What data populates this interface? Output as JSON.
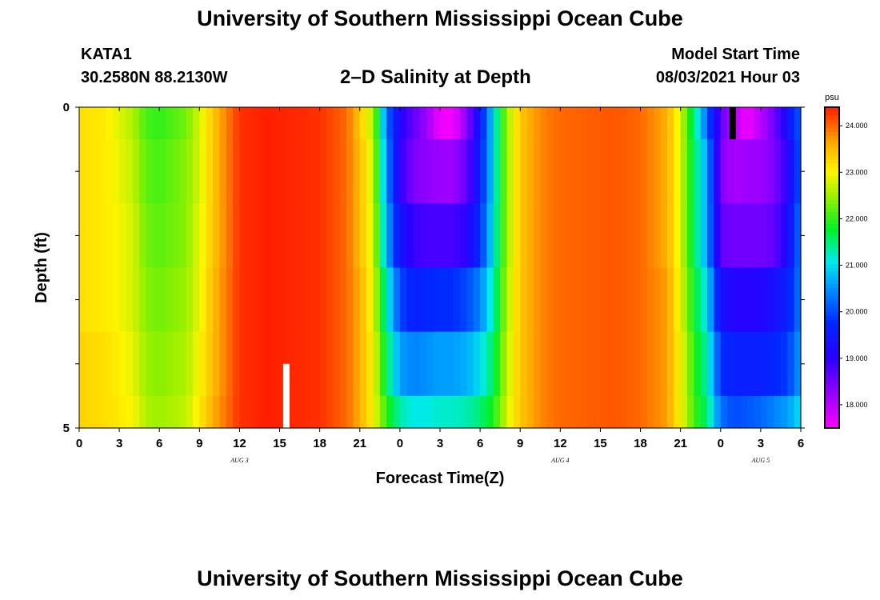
{
  "header": {
    "title": "University of Southern Mississippi Ocean Cube",
    "station": "KATA1",
    "coordinates": "30.2580N  88.2130W",
    "subtitle": "2–D Salinity at Depth",
    "model_start_label": "Model Start Time",
    "model_start_value": "08/03/2021 Hour 03"
  },
  "footer": {
    "title": "University of Southern Mississippi Ocean Cube"
  },
  "chart_data": {
    "type": "heatmap",
    "title": "2–D Salinity at Depth",
    "xlabel": "Forecast Time(Z)",
    "ylabel": "Depth (ft)",
    "xlim": [
      0,
      54
    ],
    "ylim": [
      0,
      5
    ],
    "x_ticks": [
      0,
      3,
      6,
      9,
      12,
      15,
      18,
      21,
      24,
      27,
      30,
      33,
      36,
      39,
      42,
      45,
      48,
      51,
      54
    ],
    "x_tick_labels": [
      "0",
      "3",
      "6",
      "9",
      "12",
      "15",
      "18",
      "21",
      "0",
      "3",
      "6",
      "9",
      "12",
      "15",
      "18",
      "21",
      "0",
      "3",
      "6"
    ],
    "y_ticks": [
      0,
      1,
      2,
      3,
      4,
      5
    ],
    "y_tick_labels": [
      "0",
      "",
      "",
      "",
      "",
      "5"
    ],
    "date_labels": [
      {
        "x": 12,
        "label": "AUG 3"
      },
      {
        "x": 36,
        "label": "AUG 4"
      },
      {
        "x": 51,
        "label": "AUG 5"
      }
    ],
    "colorbar": {
      "unit": "psu",
      "min": 17.5,
      "max": 24.4,
      "ticks": [
        18.0,
        19.0,
        20.0,
        21.0,
        22.0,
        23.0,
        24.0
      ],
      "tick_labels": [
        "18.000",
        "19.000",
        "20.000",
        "21.000",
        "22.000",
        "23.000",
        "24.000"
      ]
    },
    "depth_layers": [
      {
        "depth_range": [
          0,
          0.5
        ],
        "x": [
          0,
          2,
          4,
          5,
          6,
          8,
          9,
          10,
          12,
          14,
          18,
          20,
          21,
          22,
          23,
          24,
          25,
          26,
          27,
          28,
          29,
          30,
          31,
          32,
          33,
          34,
          35,
          36,
          40,
          42,
          44,
          45,
          46,
          47,
          48,
          49,
          50,
          51,
          52,
          53,
          54
        ],
        "values": [
          23.2,
          23.1,
          22.6,
          22.1,
          22.0,
          22.3,
          22.8,
          23.4,
          24.3,
          24.4,
          24.3,
          24.0,
          23.4,
          22.6,
          20.3,
          19.1,
          18.6,
          18.2,
          17.6,
          17.6,
          18.3,
          19.5,
          21.0,
          22.5,
          23.4,
          23.7,
          23.9,
          24.0,
          24.1,
          24.0,
          23.6,
          22.8,
          21.5,
          20.2,
          18.6,
          18.0,
          17.6,
          18.0,
          18.5,
          19.3,
          20.2
        ]
      },
      {
        "depth_range": [
          0.5,
          1.5
        ],
        "x": [
          0,
          2,
          4,
          5,
          6,
          8,
          9,
          10,
          12,
          14,
          18,
          20,
          21,
          22,
          23,
          24,
          25,
          26,
          27,
          28,
          29,
          30,
          31,
          32,
          33,
          34,
          35,
          36,
          40,
          42,
          44,
          45,
          46,
          47,
          48,
          49,
          50,
          51,
          52,
          53,
          54
        ],
        "values": [
          23.2,
          23.1,
          22.7,
          22.2,
          22.1,
          22.4,
          22.8,
          23.4,
          24.3,
          24.4,
          24.3,
          24.0,
          23.5,
          22.7,
          20.5,
          19.0,
          18.4,
          18.3,
          18.2,
          18.2,
          18.6,
          19.6,
          21.0,
          22.5,
          23.4,
          23.7,
          23.9,
          24.0,
          24.1,
          24.0,
          23.6,
          22.8,
          21.6,
          20.6,
          18.4,
          18.1,
          18.2,
          18.2,
          18.4,
          19.0,
          20.2
        ]
      },
      {
        "depth_range": [
          1.5,
          2.5
        ],
        "x": [
          0,
          2,
          4,
          5,
          6,
          8,
          9,
          10,
          12,
          14,
          18,
          20,
          21,
          22,
          23,
          24,
          25,
          26,
          27,
          28,
          29,
          30,
          31,
          32,
          33,
          34,
          35,
          36,
          40,
          42,
          44,
          45,
          46,
          47,
          48,
          49,
          50,
          51,
          52,
          53,
          54
        ],
        "values": [
          23.2,
          23.1,
          22.8,
          22.3,
          22.2,
          22.4,
          22.9,
          23.4,
          24.3,
          24.4,
          24.3,
          24.0,
          23.5,
          22.8,
          20.7,
          19.4,
          18.9,
          18.8,
          18.8,
          18.8,
          19.0,
          19.8,
          21.1,
          22.5,
          23.4,
          23.7,
          23.9,
          24.0,
          24.1,
          24.0,
          23.6,
          22.8,
          21.6,
          20.6,
          18.6,
          18.5,
          18.5,
          18.5,
          18.6,
          19.2,
          20.4
        ]
      },
      {
        "depth_range": [
          2.5,
          3.5
        ],
        "x": [
          0,
          2,
          4,
          5,
          6,
          8,
          9,
          10,
          12,
          14,
          18,
          20,
          21,
          22,
          23,
          24,
          25,
          26,
          27,
          28,
          29,
          30,
          31,
          32,
          33,
          34,
          35,
          36,
          40,
          42,
          44,
          45,
          46,
          47,
          48,
          49,
          50,
          51,
          52,
          53,
          54
        ],
        "values": [
          23.2,
          23.1,
          22.8,
          22.4,
          22.3,
          22.5,
          22.9,
          23.5,
          24.3,
          24.4,
          24.3,
          24.0,
          23.6,
          22.9,
          21.2,
          20.0,
          19.6,
          19.7,
          19.8,
          19.8,
          20.0,
          20.4,
          21.3,
          22.6,
          23.4,
          23.7,
          23.9,
          24.0,
          24.1,
          24.0,
          23.7,
          22.9,
          21.8,
          21.0,
          19.3,
          19.1,
          19.1,
          19.1,
          19.3,
          19.6,
          20.4
        ]
      },
      {
        "depth_range": [
          3.5,
          4.5
        ],
        "x": [
          0,
          2,
          4,
          5,
          6,
          8,
          9,
          10,
          12,
          14,
          18,
          20,
          21,
          22,
          23,
          24,
          25,
          26,
          27,
          28,
          29,
          30,
          31,
          32,
          33,
          34,
          35,
          36,
          40,
          42,
          44,
          45,
          46,
          47,
          48,
          49,
          50,
          51,
          52,
          53,
          54
        ],
        "values": [
          23.3,
          23.2,
          22.9,
          22.5,
          22.4,
          22.6,
          23.0,
          23.5,
          24.3,
          24.4,
          24.3,
          24.0,
          23.6,
          23.0,
          21.6,
          20.6,
          20.4,
          20.5,
          20.6,
          20.6,
          20.7,
          21.0,
          21.6,
          22.7,
          23.4,
          23.7,
          23.9,
          24.0,
          24.1,
          24.0,
          23.7,
          23.0,
          22.0,
          21.3,
          19.8,
          19.6,
          19.6,
          19.6,
          19.7,
          19.9,
          20.6
        ]
      },
      {
        "depth_range": [
          4.5,
          5
        ],
        "x": [
          0,
          2,
          4,
          5,
          6,
          8,
          9,
          10,
          12,
          14,
          18,
          20,
          21,
          22,
          23,
          24,
          25,
          26,
          27,
          28,
          29,
          30,
          31,
          32,
          33,
          34,
          35,
          36,
          40,
          42,
          44,
          45,
          46,
          47,
          48,
          49,
          50,
          51,
          52,
          53,
          54
        ],
        "values": [
          23.3,
          23.2,
          23.0,
          22.6,
          22.5,
          22.7,
          23.1,
          23.6,
          24.3,
          24.4,
          24.3,
          24.0,
          23.6,
          23.0,
          22.0,
          21.3,
          21.1,
          21.1,
          21.2,
          21.2,
          21.3,
          21.5,
          21.9,
          22.8,
          23.4,
          23.7,
          23.9,
          24.0,
          24.1,
          24.0,
          23.7,
          23.0,
          22.1,
          21.5,
          20.3,
          20.0,
          20.1,
          20.2,
          20.4,
          20.6,
          21.0
        ]
      }
    ],
    "markers": [
      {
        "x": 15.5,
        "depth_range": [
          4.0,
          5.0
        ],
        "color": "#ffffff"
      },
      {
        "x": 48.9,
        "depth_range": [
          0.0,
          0.5
        ],
        "color": "#000000"
      }
    ]
  }
}
